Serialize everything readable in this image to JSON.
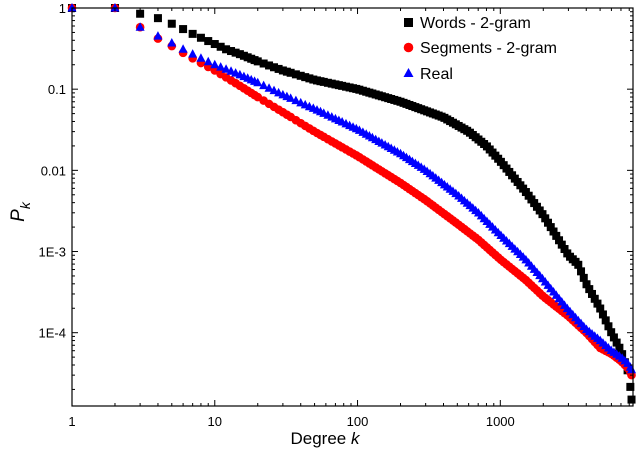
{
  "chart_data": {
    "type": "scatter",
    "xscale": "log",
    "yscale": "log",
    "xlim": [
      1,
      8500
    ],
    "ylim": [
      1.25e-05,
      1
    ],
    "xticks": [
      {
        "value": 1,
        "label": "1"
      },
      {
        "value": 10,
        "label": "10"
      },
      {
        "value": 100,
        "label": "100"
      },
      {
        "value": 1000,
        "label": "1000"
      }
    ],
    "yticks": [
      {
        "value": 1,
        "label": "1"
      },
      {
        "value": 0.1,
        "label": "0.1"
      },
      {
        "value": 0.01,
        "label": "0.01"
      },
      {
        "value": 0.001,
        "label": "1E-3"
      },
      {
        "value": 0.0001,
        "label": "1E-4"
      }
    ],
    "xlabel_prefix": "Degree ",
    "xlabel_var": "k",
    "ylabel_var": "P",
    "ylabel_sub": "k",
    "grid": false,
    "legend_position": "top-right",
    "series": [
      {
        "name": "Words - 2-gram",
        "marker": "square",
        "color": "#000000",
        "points": [
          [
            1,
            1.0
          ],
          [
            2,
            1.0
          ],
          [
            3,
            0.85
          ],
          [
            4,
            0.75
          ],
          [
            5,
            0.64
          ],
          [
            6,
            0.55
          ],
          [
            7,
            0.48
          ],
          [
            8,
            0.43
          ],
          [
            10,
            0.36
          ],
          [
            12,
            0.31
          ],
          [
            15,
            0.27
          ],
          [
            20,
            0.22
          ],
          [
            30,
            0.17
          ],
          [
            50,
            0.13
          ],
          [
            100,
            0.1
          ],
          [
            200,
            0.07
          ],
          [
            400,
            0.045
          ],
          [
            600,
            0.03
          ],
          [
            800,
            0.02
          ],
          [
            1000,
            0.013
          ],
          [
            1500,
            0.0055
          ],
          [
            2000,
            0.0028
          ],
          [
            2500,
            0.0015
          ],
          [
            3000,
            0.0009
          ],
          [
            3500,
            0.0007
          ],
          [
            4000,
            0.0004
          ],
          [
            5000,
            0.0002
          ],
          [
            6000,
            0.0001
          ],
          [
            7000,
            6e-05
          ],
          [
            8000,
            3e-05
          ],
          [
            8300,
            1.5e-05
          ]
        ],
        "color_hex": "#000000"
      },
      {
        "name": "Segments - 2-gram",
        "marker": "circle",
        "color": "#ff0000",
        "points": [
          [
            1,
            1.0
          ],
          [
            2,
            1.0
          ],
          [
            3,
            0.58
          ],
          [
            4,
            0.42
          ],
          [
            5,
            0.34
          ],
          [
            6,
            0.28
          ],
          [
            7,
            0.24
          ],
          [
            8,
            0.21
          ],
          [
            10,
            0.17
          ],
          [
            15,
            0.11
          ],
          [
            20,
            0.08
          ],
          [
            30,
            0.052
          ],
          [
            50,
            0.03
          ],
          [
            100,
            0.015
          ],
          [
            200,
            0.007
          ],
          [
            300,
            0.0043
          ],
          [
            500,
            0.0022
          ],
          [
            700,
            0.0014
          ],
          [
            1000,
            0.0008
          ],
          [
            1500,
            0.00045
          ],
          [
            2000,
            0.00028
          ],
          [
            3000,
            0.00016
          ],
          [
            4000,
            0.0001
          ],
          [
            5000,
            6.5e-05
          ],
          [
            6000,
            5.5e-05
          ],
          [
            7000,
            4.5e-05
          ],
          [
            8000,
            3.5e-05
          ],
          [
            8300,
            3e-05
          ]
        ],
        "color_hex": "#ff0000"
      },
      {
        "name": "Real",
        "marker": "triangle",
        "color": "#0000ff",
        "points": [
          [
            1,
            1.0
          ],
          [
            2,
            1.0
          ],
          [
            3,
            0.58
          ],
          [
            4,
            0.45
          ],
          [
            5,
            0.37
          ],
          [
            6,
            0.31
          ],
          [
            7,
            0.27
          ],
          [
            8,
            0.24
          ],
          [
            10,
            0.2
          ],
          [
            15,
            0.15
          ],
          [
            20,
            0.12
          ],
          [
            30,
            0.085
          ],
          [
            50,
            0.057
          ],
          [
            100,
            0.032
          ],
          [
            200,
            0.016
          ],
          [
            300,
            0.01
          ],
          [
            500,
            0.005
          ],
          [
            700,
            0.003
          ],
          [
            1000,
            0.0016
          ],
          [
            1500,
            0.0008
          ],
          [
            2000,
            0.00045
          ],
          [
            3000,
            0.00019
          ],
          [
            4000,
            0.00011
          ],
          [
            5000,
            8e-05
          ],
          [
            6000,
            6e-05
          ],
          [
            7000,
            5e-05
          ],
          [
            8000,
            4e-05
          ],
          [
            8300,
            3.5e-05
          ]
        ],
        "color_hex": "#0000ff"
      }
    ]
  }
}
